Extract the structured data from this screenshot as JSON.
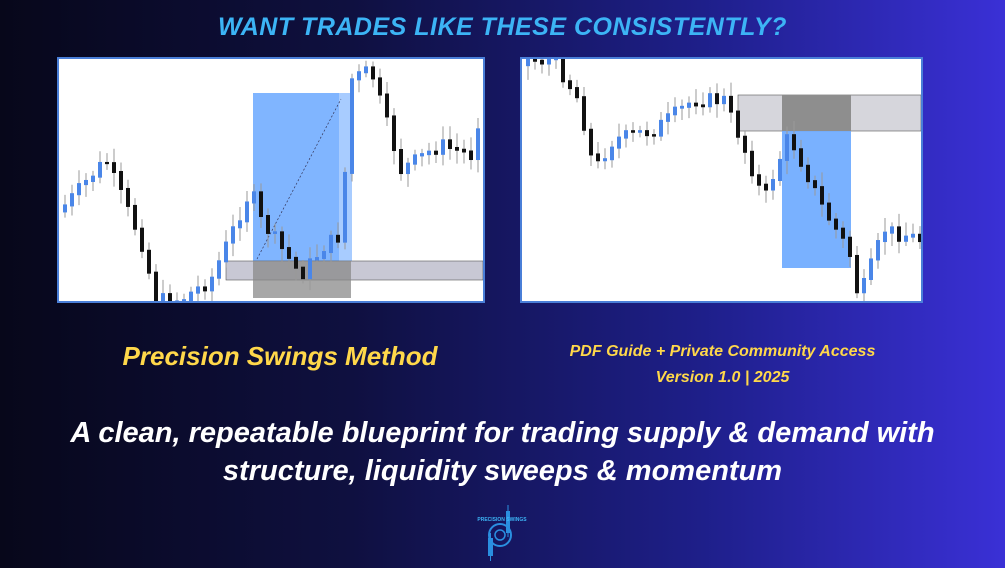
{
  "headline": "WANT TRADES LIKE THESE CONSISTENTLY?",
  "product_name": "Precision Swings Method",
  "offer_line": "PDF Guide + Private Community Access",
  "version_line": "Version 1.0 | 2025",
  "tagline_line1": "A clean, repeatable blueprint for trading supply & demand with",
  "tagline_line2": "structure, liquidity sweeps & momentum",
  "logo_text": "PRECISION SWINGS",
  "colors": {
    "headline": "#3cb4f5",
    "accent": "#ffd84a",
    "bull_candle": "#4a86e8",
    "bear_candle": "#111111",
    "zone_blue": "#6aa8ff",
    "zone_gray": "#b0b0c0"
  }
}
